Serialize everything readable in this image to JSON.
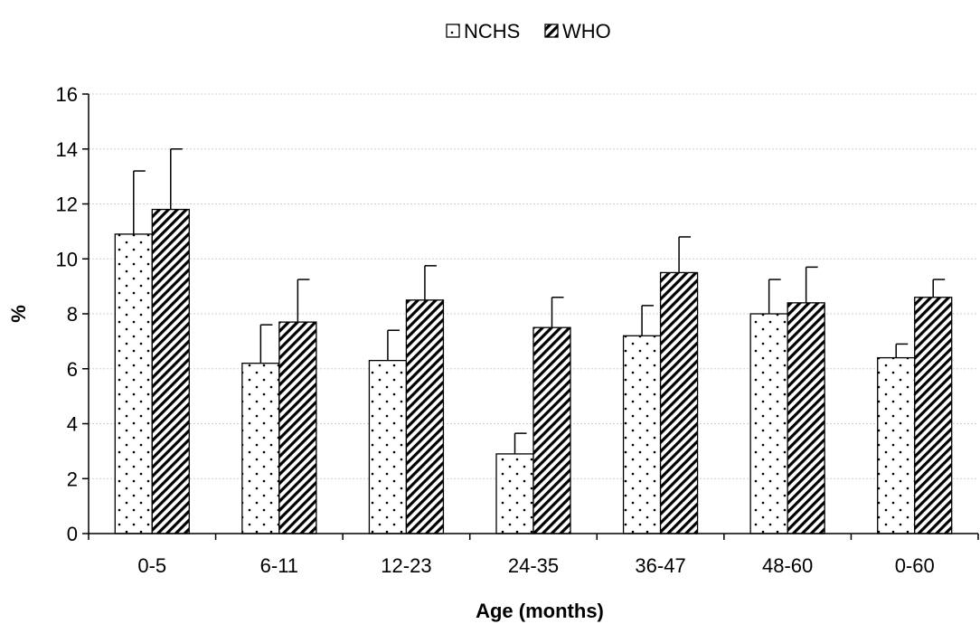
{
  "chart_data": {
    "type": "bar",
    "title": "",
    "xlabel": "Age (months)",
    "ylabel": "%",
    "ylim": [
      0,
      16
    ],
    "yticks": [
      0,
      2,
      4,
      6,
      8,
      10,
      12,
      14,
      16
    ],
    "grid": true,
    "legend_position": "top-center",
    "categories": [
      "0-5",
      "6-11",
      "12-23",
      "24-35",
      "36-47",
      "48-60",
      "0-60"
    ],
    "series": [
      {
        "name": "NCHS",
        "pattern": "dots",
        "values": [
          10.9,
          6.2,
          6.3,
          2.9,
          7.2,
          8.0,
          6.4
        ],
        "error": [
          2.3,
          1.4,
          1.1,
          0.75,
          1.1,
          1.25,
          0.5
        ]
      },
      {
        "name": "WHO",
        "pattern": "diagonal-stripes",
        "values": [
          11.8,
          7.7,
          8.5,
          7.5,
          9.5,
          8.4,
          8.6
        ],
        "error": [
          2.2,
          1.55,
          1.25,
          1.1,
          1.3,
          1.3,
          0.65
        ]
      }
    ],
    "colors": {
      "bar_fill": "#ffffff",
      "bar_stroke": "#000000",
      "pattern": "#000000",
      "grid": "#cfcfcf"
    }
  }
}
